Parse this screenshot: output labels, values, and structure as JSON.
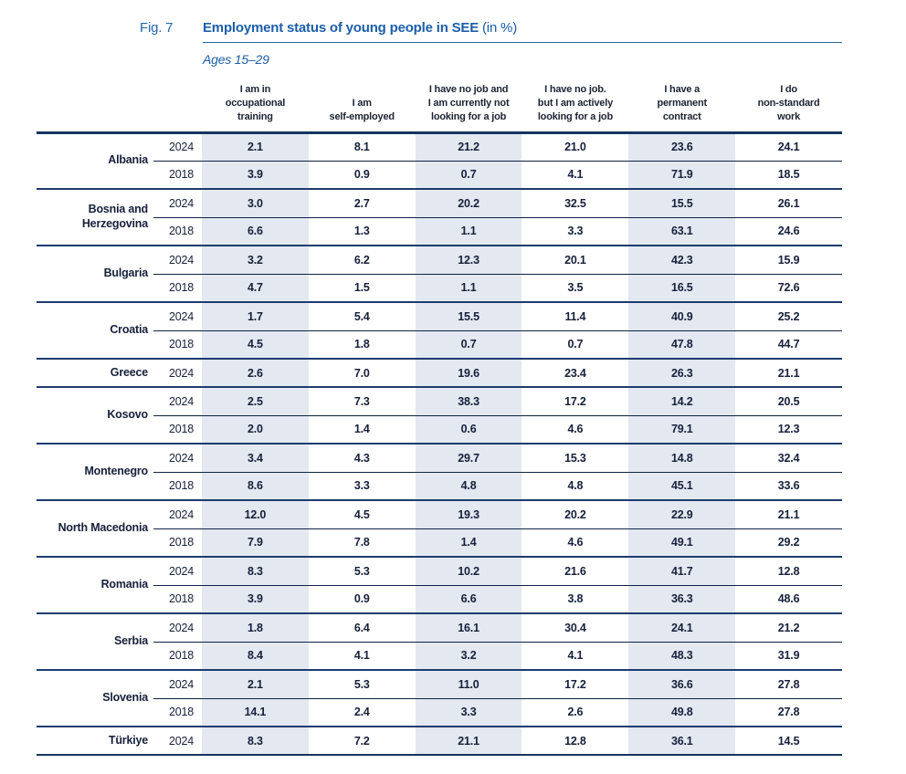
{
  "figure": {
    "label": "Fig. 7",
    "title": "Employment status of young people in SEE",
    "title_suffix": " (in %)",
    "subtitle": "Ages 15–29"
  },
  "colors": {
    "title_blue": "#1c5ea9",
    "rule_blue": "#2b66a4",
    "line_navy": "#16345f",
    "group_separator": "#1d3c6e",
    "year_divider": "#0f2342",
    "band_background": "#e3e8f1",
    "text_dark": "#16203a"
  },
  "table": {
    "columns": [
      "I am in\noccupational\ntraining",
      "I am\nself-employed",
      "I have no job and\nI am currently not\nlooking for a job",
      "I have no job.\nbut I am actively\nlooking for a job",
      "I have a\npermanent\ncontract",
      "I do\nnon-standard\nwork"
    ],
    "countries": [
      {
        "name": "Albania",
        "rows": [
          {
            "year": "2024",
            "values": [
              "2.1",
              "8.1",
              "21.2",
              "21.0",
              "23.6",
              "24.1"
            ]
          },
          {
            "year": "2018",
            "values": [
              "3.9",
              "0.9",
              "0.7",
              "4.1",
              "71.9",
              "18.5"
            ]
          }
        ]
      },
      {
        "name": "Bosnia and Herzegovina",
        "rows": [
          {
            "year": "2024",
            "values": [
              "3.0",
              "2.7",
              "20.2",
              "32.5",
              "15.5",
              "26.1"
            ]
          },
          {
            "year": "2018",
            "values": [
              "6.6",
              "1.3",
              "1.1",
              "3.3",
              "63.1",
              "24.6"
            ]
          }
        ]
      },
      {
        "name": "Bulgaria",
        "rows": [
          {
            "year": "2024",
            "values": [
              "3.2",
              "6.2",
              "12.3",
              "20.1",
              "42.3",
              "15.9"
            ]
          },
          {
            "year": "2018",
            "values": [
              "4.7",
              "1.5",
              "1.1",
              "3.5",
              "16.5",
              "72.6"
            ]
          }
        ]
      },
      {
        "name": "Croatia",
        "rows": [
          {
            "year": "2024",
            "values": [
              "1.7",
              "5.4",
              "15.5",
              "11.4",
              "40.9",
              "25.2"
            ]
          },
          {
            "year": "2018",
            "values": [
              "4.5",
              "1.8",
              "0.7",
              "0.7",
              "47.8",
              "44.7"
            ]
          }
        ]
      },
      {
        "name": "Greece",
        "rows": [
          {
            "year": "2024",
            "values": [
              "2.6",
              "7.0",
              "19.6",
              "23.4",
              "26.3",
              "21.1"
            ]
          }
        ]
      },
      {
        "name": "Kosovo",
        "rows": [
          {
            "year": "2024",
            "values": [
              "2.5",
              "7.3",
              "38.3",
              "17.2",
              "14.2",
              "20.5"
            ]
          },
          {
            "year": "2018",
            "values": [
              "2.0",
              "1.4",
              "0.6",
              "4.6",
              "79.1",
              "12.3"
            ]
          }
        ]
      },
      {
        "name": "Montenegro",
        "rows": [
          {
            "year": "2024",
            "values": [
              "3.4",
              "4.3",
              "29.7",
              "15.3",
              "14.8",
              "32.4"
            ]
          },
          {
            "year": "2018",
            "values": [
              "8.6",
              "3.3",
              "4.8",
              "4.8",
              "45.1",
              "33.6"
            ]
          }
        ]
      },
      {
        "name": "North Macedonia",
        "rows": [
          {
            "year": "2024",
            "values": [
              "12.0",
              "4.5",
              "19.3",
              "20.2",
              "22.9",
              "21.1"
            ]
          },
          {
            "year": "2018",
            "values": [
              "7.9",
              "7.8",
              "1.4",
              "4.6",
              "49.1",
              "29.2"
            ]
          }
        ]
      },
      {
        "name": "Romania",
        "rows": [
          {
            "year": "2024",
            "values": [
              "8.3",
              "5.3",
              "10.2",
              "21.6",
              "41.7",
              "12.8"
            ]
          },
          {
            "year": "2018",
            "values": [
              "3.9",
              "0.9",
              "6.6",
              "3.8",
              "36.3",
              "48.6"
            ]
          }
        ]
      },
      {
        "name": "Serbia",
        "rows": [
          {
            "year": "2024",
            "values": [
              "1.8",
              "6.4",
              "16.1",
              "30.4",
              "24.1",
              "21.2"
            ]
          },
          {
            "year": "2018",
            "values": [
              "8.4",
              "4.1",
              "3.2",
              "4.1",
              "48.3",
              "31.9"
            ]
          }
        ]
      },
      {
        "name": "Slovenia",
        "rows": [
          {
            "year": "2024",
            "values": [
              "2.1",
              "5.3",
              "11.0",
              "17.2",
              "36.6",
              "27.8"
            ]
          },
          {
            "year": "2018",
            "values": [
              "14.1",
              "2.4",
              "3.3",
              "2.6",
              "49.8",
              "27.8"
            ]
          }
        ]
      },
      {
        "name": "Türkiye",
        "rows": [
          {
            "year": "2024",
            "values": [
              "8.3",
              "7.2",
              "21.1",
              "12.8",
              "36.1",
              "14.5"
            ]
          }
        ]
      }
    ]
  }
}
